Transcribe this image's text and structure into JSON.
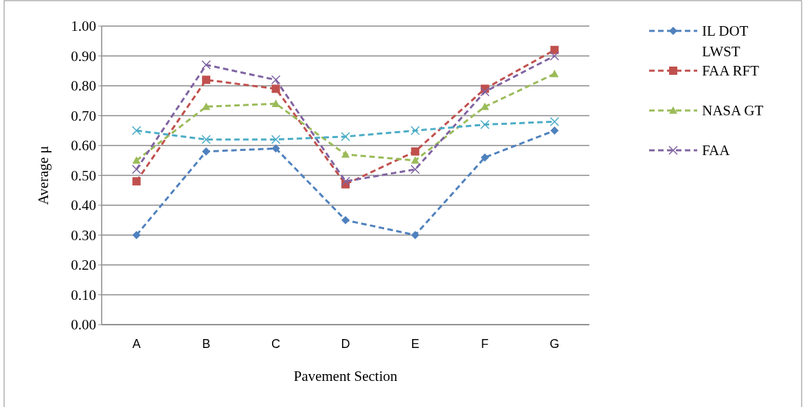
{
  "chart_data": {
    "type": "line",
    "xlabel": "Pavement Section",
    "ylabel": "Average μ",
    "categories": [
      "A",
      "B",
      "C",
      "D",
      "E",
      "F",
      "G"
    ],
    "series": [
      {
        "name": "IL DOT LWST",
        "color": "#4f81bd",
        "marker": "diamond",
        "values": [
          0.3,
          0.58,
          0.59,
          0.35,
          0.3,
          0.56,
          0.65
        ]
      },
      {
        "name": "FAA RFT",
        "color": "#c0504d",
        "marker": "square",
        "values": [
          0.48,
          0.82,
          0.79,
          0.47,
          0.58,
          0.79,
          0.92
        ]
      },
      {
        "name": "NASA GT",
        "color": "#9bbb59",
        "marker": "triangle",
        "values": [
          0.55,
          0.73,
          0.74,
          0.57,
          0.55,
          0.73,
          0.84
        ]
      },
      {
        "name": "FAA",
        "color": "#8064a2",
        "marker": "cross",
        "values": [
          0.52,
          0.87,
          0.82,
          0.48,
          0.52,
          0.78,
          0.9
        ]
      },
      {
        "color": "#4bacc6",
        "marker": "cross",
        "values": [
          0.65,
          0.62,
          0.62,
          0.63,
          0.65,
          0.67,
          0.68
        ]
      }
    ],
    "ylim": [
      0,
      1
    ],
    "yticks": [
      {
        "value": 0,
        "label": "0.00"
      },
      {
        "value": 0.1,
        "label": "0.10"
      },
      {
        "value": 0.2,
        "label": "0.20"
      },
      {
        "value": 0.3,
        "label": "0.30"
      },
      {
        "value": 0.4,
        "label": "0.40"
      },
      {
        "value": 0.5,
        "label": "0.50"
      },
      {
        "value": 0.6,
        "label": "0.60"
      },
      {
        "value": 0.7,
        "label": "0.70"
      },
      {
        "value": 0.8,
        "label": "0.80"
      },
      {
        "value": 0.9,
        "label": "0.90"
      },
      {
        "value": 1,
        "label": "1.00"
      }
    ],
    "grid": "y",
    "legend": "right",
    "line_style": "dashed"
  }
}
